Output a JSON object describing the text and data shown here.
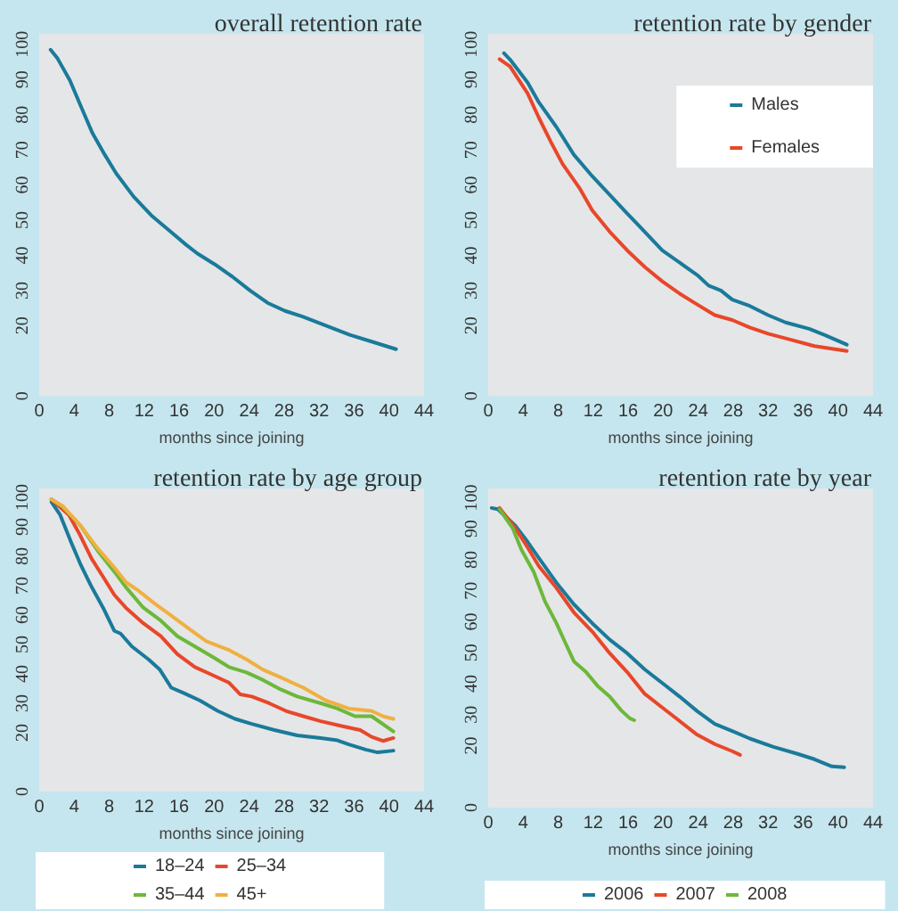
{
  "chart_data": [
    {
      "type": "line",
      "title": "overall retention rate",
      "xlabel": "months since joining",
      "xlim": [
        0,
        44
      ],
      "xticks": [
        0,
        4,
        8,
        12,
        16,
        20,
        24,
        28,
        32,
        36,
        40,
        44
      ],
      "ylim": [
        0,
        103
      ],
      "yticks": [
        0,
        20,
        30,
        40,
        50,
        60,
        70,
        80,
        90,
        100
      ],
      "grid": false,
      "marker": "none",
      "legend": false,
      "series": [
        {
          "color": "#1a7a9a",
          "x": [
            1.3,
            2.1,
            3.5,
            4.8,
            6.1,
            7.5,
            8.8,
            10.8,
            12.8,
            14.8,
            16.8,
            18.1,
            20.1,
            22.1,
            24.1,
            26.1,
            28.1,
            30.1,
            32.8,
            35.5,
            38.1,
            40.8
          ],
          "values": [
            98.5,
            96,
            89.8,
            82.2,
            74.7,
            68.6,
            63.3,
            56.7,
            51.4,
            47.2,
            43,
            40.5,
            37.4,
            33.9,
            30,
            26.5,
            24.2,
            22.6,
            20,
            17.4,
            15.4,
            13.3
          ]
        }
      ]
    },
    {
      "type": "line",
      "title": "retention rate by gender",
      "xlabel": "months since joining",
      "xlim": [
        0,
        44
      ],
      "xticks": [
        0,
        4,
        8,
        12,
        16,
        20,
        24,
        28,
        32,
        36,
        40,
        44
      ],
      "ylim": [
        0,
        103
      ],
      "yticks": [
        0,
        20,
        30,
        40,
        50,
        60,
        70,
        80,
        90,
        100
      ],
      "grid": false,
      "marker": "none",
      "legend": "top right",
      "series": [
        {
          "name": "Males",
          "color": "#1a7a9a",
          "x": [
            1.8,
            2.5,
            4.5,
            5.8,
            7.8,
            9.8,
            11.9,
            13.9,
            15.9,
            17.9,
            19.9,
            21.9,
            23.9,
            25.2,
            26.6,
            27.9,
            29.9,
            32,
            34,
            36.7,
            38.6,
            41
          ],
          "values": [
            97.5,
            95.7,
            89.2,
            83.5,
            76.5,
            68.6,
            62.5,
            57.2,
            51.9,
            46.7,
            41.4,
            37.9,
            34.4,
            31.4,
            30,
            27.4,
            25.6,
            23,
            20.9,
            19.1,
            17.2,
            14.6
          ]
        },
        {
          "name": "Females",
          "color": "#e8472a",
          "x": [
            1.3,
            2.5,
            4.5,
            5.8,
            7.2,
            8.5,
            10.5,
            11.9,
            13.9,
            15.9,
            17.9,
            19.9,
            21.9,
            23.9,
            25.9,
            27.9,
            29.9,
            32,
            34.6,
            37.3,
            41
          ],
          "values": [
            95.8,
            93.7,
            86.1,
            79.1,
            72.1,
            66,
            58.9,
            52.8,
            46.7,
            41.4,
            36.7,
            32.6,
            29.1,
            26,
            23,
            21.6,
            19.5,
            17.7,
            16,
            14.2,
            12.8
          ]
        }
      ]
    },
    {
      "type": "line",
      "title": "retention rate by age group",
      "xlabel": "months since joining",
      "xlim": [
        0,
        44
      ],
      "xticks": [
        0,
        4,
        8,
        12,
        16,
        20,
        24,
        28,
        32,
        36,
        40,
        44
      ],
      "ylim": [
        0,
        103
      ],
      "yticks": [
        0,
        20,
        30,
        40,
        50,
        60,
        70,
        80,
        90,
        100
      ],
      "grid": false,
      "marker": "none",
      "legend": "bottom",
      "series": [
        {
          "name": "18–24",
          "color": "#1a7a9a",
          "x": [
            1.4,
            2.4,
            3.7,
            4.7,
            6,
            7.3,
            8.6,
            9.3,
            10.6,
            12.5,
            13.8,
            15.1,
            16.5,
            18.4,
            20.4,
            22.4,
            24.3,
            26.9,
            29.5,
            32.2,
            34.1,
            35.4,
            37.4,
            38.7,
            40.5
          ],
          "values": [
            98.4,
            94,
            84.4,
            77.4,
            69.5,
            62.5,
            54.6,
            53.7,
            49.3,
            44.9,
            41.4,
            35.3,
            33.5,
            30.9,
            27.4,
            24.7,
            23,
            20.9,
            19.1,
            18.2,
            17.4,
            16,
            14.2,
            13.3,
            13.9
          ]
        },
        {
          "name": "25–34",
          "color": "#e8472a",
          "x": [
            1.4,
            3.4,
            4.7,
            6,
            7.3,
            8.6,
            9.9,
            11.9,
            13.9,
            15.8,
            17.8,
            19.8,
            21.7,
            23,
            24.3,
            26.3,
            28.2,
            30.2,
            32.2,
            34.8,
            36.7,
            38,
            39.3,
            40.5
          ],
          "values": [
            99.3,
            94,
            87,
            79.1,
            73,
            66.8,
            62.5,
            57.2,
            52.8,
            46.7,
            42.3,
            39.6,
            37,
            33,
            32.3,
            30,
            27.4,
            25.6,
            23.9,
            22.1,
            20.9,
            18.6,
            17.2,
            18.2
          ]
        },
        {
          "name": "35–44",
          "color": "#6cb83a",
          "x": [
            1.4,
            2.7,
            4.7,
            6.7,
            8.6,
            9.9,
            11.9,
            13.9,
            15.8,
            17.8,
            19.8,
            21.7,
            23.7,
            25.6,
            27.6,
            29.5,
            32.2,
            34.1,
            36.1,
            38,
            40.5
          ],
          "values": [
            99.3,
            96.7,
            90.5,
            81.8,
            74.7,
            69.5,
            62.5,
            58.1,
            52.8,
            49.3,
            45.8,
            42.3,
            40.5,
            37.9,
            34.7,
            32.3,
            30,
            28.2,
            25.6,
            25.6,
            20.4
          ]
        },
        {
          "name": "45+",
          "color": "#f0b040",
          "x": [
            1.4,
            2.7,
            4.7,
            6.7,
            8.6,
            9.9,
            11.2,
            13.2,
            15.1,
            17.1,
            19.1,
            21.7,
            23.7,
            25.6,
            27.6,
            30.2,
            32.8,
            35.4,
            38,
            39.3,
            40.5
          ],
          "values": [
            99.3,
            97,
            90.5,
            82.6,
            76.1,
            71.2,
            68.6,
            63.9,
            59.8,
            55.4,
            51.1,
            48.1,
            44.9,
            41.4,
            38.8,
            35.3,
            30.9,
            28.2,
            27.4,
            25.6,
            24.7
          ]
        }
      ]
    },
    {
      "type": "line",
      "title": "retention rate by year",
      "xlabel": "months since joining",
      "xlim": [
        0,
        44
      ],
      "xticks": [
        0,
        4,
        8,
        12,
        16,
        20,
        24,
        28,
        32,
        36,
        40,
        44
      ],
      "ylim": [
        0,
        103
      ],
      "yticks": [
        0,
        20,
        30,
        40,
        50,
        60,
        70,
        80,
        90,
        100
      ],
      "grid": false,
      "marker": "none",
      "legend": "bottom",
      "series": [
        {
          "name": "2006",
          "color": "#1a7a9a",
          "x": [
            0.4,
            1.1,
            3.1,
            4.5,
            5.8,
            7.8,
            9.8,
            11.9,
            13.9,
            15.9,
            17.9,
            19.9,
            21.9,
            23.9,
            25.9,
            27.9,
            29.9,
            32.6,
            35.3,
            37.3,
            39.3,
            40.7
          ],
          "values": [
            96.7,
            96.3,
            91,
            85.8,
            80.5,
            72.6,
            65.6,
            59.5,
            54.2,
            49.8,
            44.6,
            40.2,
            35.8,
            31.1,
            27,
            24.7,
            22.3,
            19.6,
            17.4,
            15.6,
            13.3,
            13
          ]
        },
        {
          "name": "2007",
          "color": "#e8472a",
          "x": [
            1.3,
            3.1,
            4.5,
            5.8,
            7.8,
            9.8,
            11.9,
            13.9,
            15.9,
            17.9,
            19.9,
            21.9,
            23.9,
            25.9,
            27.9,
            28.8
          ],
          "values": [
            96.7,
            90.2,
            84,
            77.9,
            70.9,
            63,
            56.8,
            49.8,
            43.7,
            36.7,
            32.3,
            27.9,
            23.5,
            20.5,
            18.2,
            17
          ]
        },
        {
          "name": "2008",
          "color": "#6cb83a",
          "x": [
            1.3,
            2.8,
            3.8,
            5.2,
            6.5,
            7.8,
            8.8,
            9.8,
            11.2,
            12.5,
            13.9,
            15.2,
            16.2,
            16.7
          ],
          "values": [
            96.3,
            90.2,
            83.2,
            76.1,
            66.5,
            59.5,
            53.3,
            47.2,
            43.7,
            39.3,
            35.8,
            31.4,
            28.8,
            28.2
          ]
        }
      ]
    }
  ]
}
